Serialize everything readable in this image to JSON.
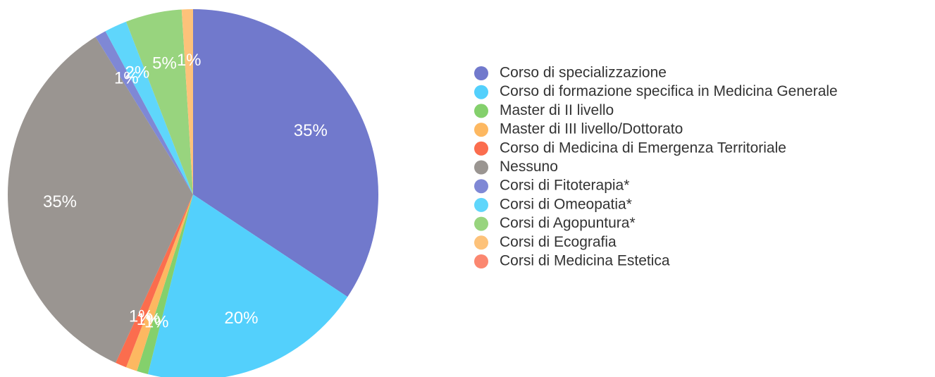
{
  "chart_data": {
    "type": "pie",
    "categories": [
      "Corso di specializzazione",
      "Corso di formazione specifica in Medicina Generale",
      "Master di II livello",
      "Master di III livello/Dottorato",
      "Corso di Medicina di Emergenza Territoriale",
      "Nessuno",
      "Corsi di Fitoterapia*",
      "Corsi di Omeopatia*",
      "Corsi di Agopuntura*",
      " Corsi di Ecografia",
      "Corsi di Medicina Estetica"
    ],
    "values": [
      35,
      20,
      1,
      1,
      1,
      35,
      1,
      2,
      5,
      1,
      0
    ],
    "value_labels": [
      "35%",
      "20%",
      "1%",
      "1%",
      "1%",
      "35%",
      "1%",
      "2%",
      "5%",
      "1%",
      null
    ],
    "colors": [
      "#7179cc",
      "#53d0fc",
      "#84d06c",
      "#fdb861",
      "#fb6d4e",
      "#9a9591",
      "#7f88d5",
      "#5fd6fb",
      "#98d47e",
      "#fdc27a",
      "#fb8770"
    ],
    "legend": "right"
  }
}
